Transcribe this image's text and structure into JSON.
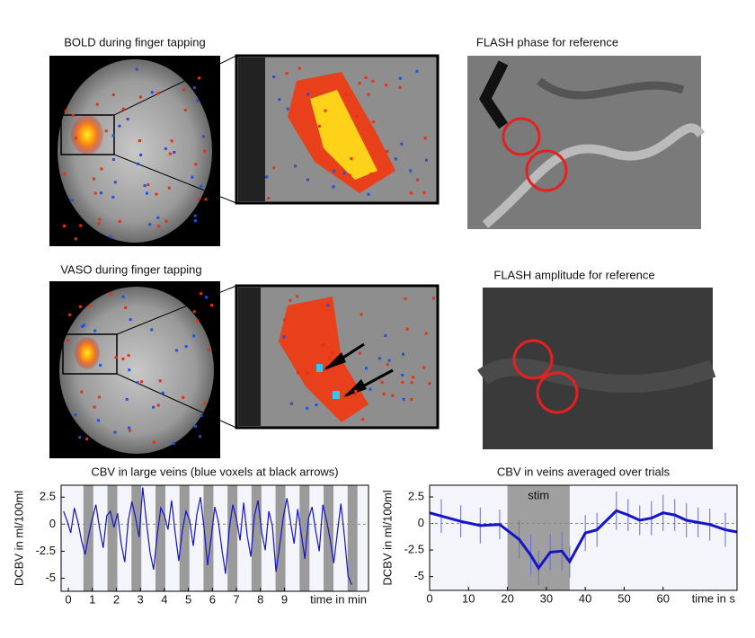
{
  "panels": [
    {
      "title": "BOLD during finger tapping"
    },
    {
      "title": "FLASH phase for reference"
    },
    {
      "title": "VASO during finger tapping"
    },
    {
      "title": "FLASH amplitude for reference"
    }
  ],
  "chart_data": [
    {
      "type": "line",
      "title": "CBV in large veins (blue voxels at black arrows)",
      "y_label": "DCBV in ml/100ml",
      "x_label": "time in min",
      "x": [
        -0.2,
        -0.05,
        0.1,
        0.25,
        0.4,
        0.55,
        0.7,
        0.85,
        1,
        1.15,
        1.3,
        1.45,
        1.6,
        1.75,
        1.9,
        2.05,
        2.2,
        2.35,
        2.5,
        2.65,
        2.8,
        2.95,
        3.1,
        3.25,
        3.4,
        3.55,
        3.7,
        3.85,
        4,
        4.15,
        4.3,
        4.45,
        4.6,
        4.75,
        4.9,
        5.05,
        5.2,
        5.35,
        5.5,
        5.65,
        5.8,
        5.95,
        6.1,
        6.25,
        6.4,
        6.55,
        6.7,
        6.85,
        7,
        7.15,
        7.3,
        7.45,
        7.6,
        7.75,
        7.9,
        8.05,
        8.2,
        8.35,
        8.5,
        8.65,
        8.8,
        8.95,
        9.1,
        9.25,
        9.4,
        9.55,
        9.7,
        9.85,
        10,
        10.15,
        10.3,
        10.45,
        10.6,
        10.75,
        10.9,
        11.05,
        11.2,
        11.35,
        11.5,
        11.65,
        11.8
      ],
      "values": [
        1.2,
        0.3,
        -0.8,
        1.5,
        0.2,
        -1.5,
        -2.8,
        -1,
        0.5,
        1.8,
        -0.4,
        -2.2,
        0.8,
        1.2,
        -0.3,
        1,
        -1.8,
        -3.5,
        0.4,
        2.1,
        0.6,
        -1.2,
        3.4,
        0.2,
        -2.6,
        -4.2,
        -1,
        1.5,
        0.8,
        -0.5,
        2.2,
        -0.8,
        -3.4,
        -0.6,
        1.2,
        0.4,
        -2,
        0.9,
        2.5,
        -0.3,
        -3.8,
        -1.2,
        1.6,
        0.2,
        -2.4,
        -4.6,
        -0.5,
        1.8,
        0.5,
        -1.5,
        2,
        -1.1,
        -3,
        0.8,
        2.2,
        -0.7,
        -2.4,
        1.2,
        -0.2,
        -4.4,
        -2,
        0.6,
        2.4,
        0.2,
        -1.8,
        1.4,
        -0.9,
        -3.2,
        0.5,
        1.6,
        -0.6,
        -2.5,
        1.8,
        0.4,
        -1.4,
        -3.6,
        -0.8,
        1.9,
        -1.2,
        -4.8,
        -5.6
      ],
      "color": "#1414c8",
      "stim_blocks": [
        [
          0.63,
          1.04
        ],
        [
          1.63,
          2.04
        ],
        [
          2.63,
          3.04
        ],
        [
          3.63,
          4.04
        ],
        [
          4.63,
          5.04
        ],
        [
          5.63,
          6.04
        ],
        [
          6.63,
          7.04
        ],
        [
          7.63,
          8.04
        ],
        [
          8.63,
          9.04
        ],
        [
          9.63,
          10.04
        ],
        [
          10.63,
          11.04
        ],
        [
          11.63,
          12.04
        ]
      ],
      "xlim": [
        -0.3,
        12.5
      ],
      "ylim": [
        -6.2,
        3.6
      ],
      "xticks": [
        0,
        1,
        2,
        3,
        4,
        5,
        6,
        7,
        8,
        9
      ],
      "yticks": [
        2.5,
        0,
        -2.5,
        -5
      ]
    },
    {
      "type": "line",
      "title": "CBV in veins averaged over trials",
      "y_label": "DCBV in ml/100ml",
      "x_label": "time in s",
      "x": [
        0,
        3,
        8,
        13,
        18,
        23,
        26,
        28,
        31,
        34,
        36,
        40,
        43,
        48,
        51,
        54,
        57,
        60,
        63,
        66,
        69,
        72,
        76,
        79
      ],
      "values": [
        1,
        0.7,
        0.2,
        -0.2,
        -0.1,
        -1.5,
        -3,
        -4.2,
        -2.7,
        -2.6,
        -3.6,
        -0.9,
        -0.6,
        1.2,
        0.8,
        0.3,
        0.5,
        1,
        0.8,
        0.3,
        0.1,
        -0.1,
        -0.6,
        -0.8
      ],
      "errors": [
        1.4,
        1.6,
        1.5,
        1.7,
        1.4,
        1.8,
        1.9,
        1.6,
        1.7,
        1.8,
        1.5,
        1.7,
        1.6,
        1.8,
        1.5,
        1.4,
        1.6,
        1.7,
        1.5,
        1.6,
        1.4,
        1.5,
        1.6,
        1.4
      ],
      "color": "#1414c8",
      "annotation": "stim",
      "stim_block": [
        20,
        36
      ],
      "xlim": [
        0,
        79
      ],
      "ylim": [
        -6.3,
        3.6
      ],
      "xticks": [
        0,
        10,
        20,
        30,
        40,
        50,
        60
      ],
      "yticks": [
        2.5,
        0,
        -2.5,
        -5
      ]
    }
  ]
}
